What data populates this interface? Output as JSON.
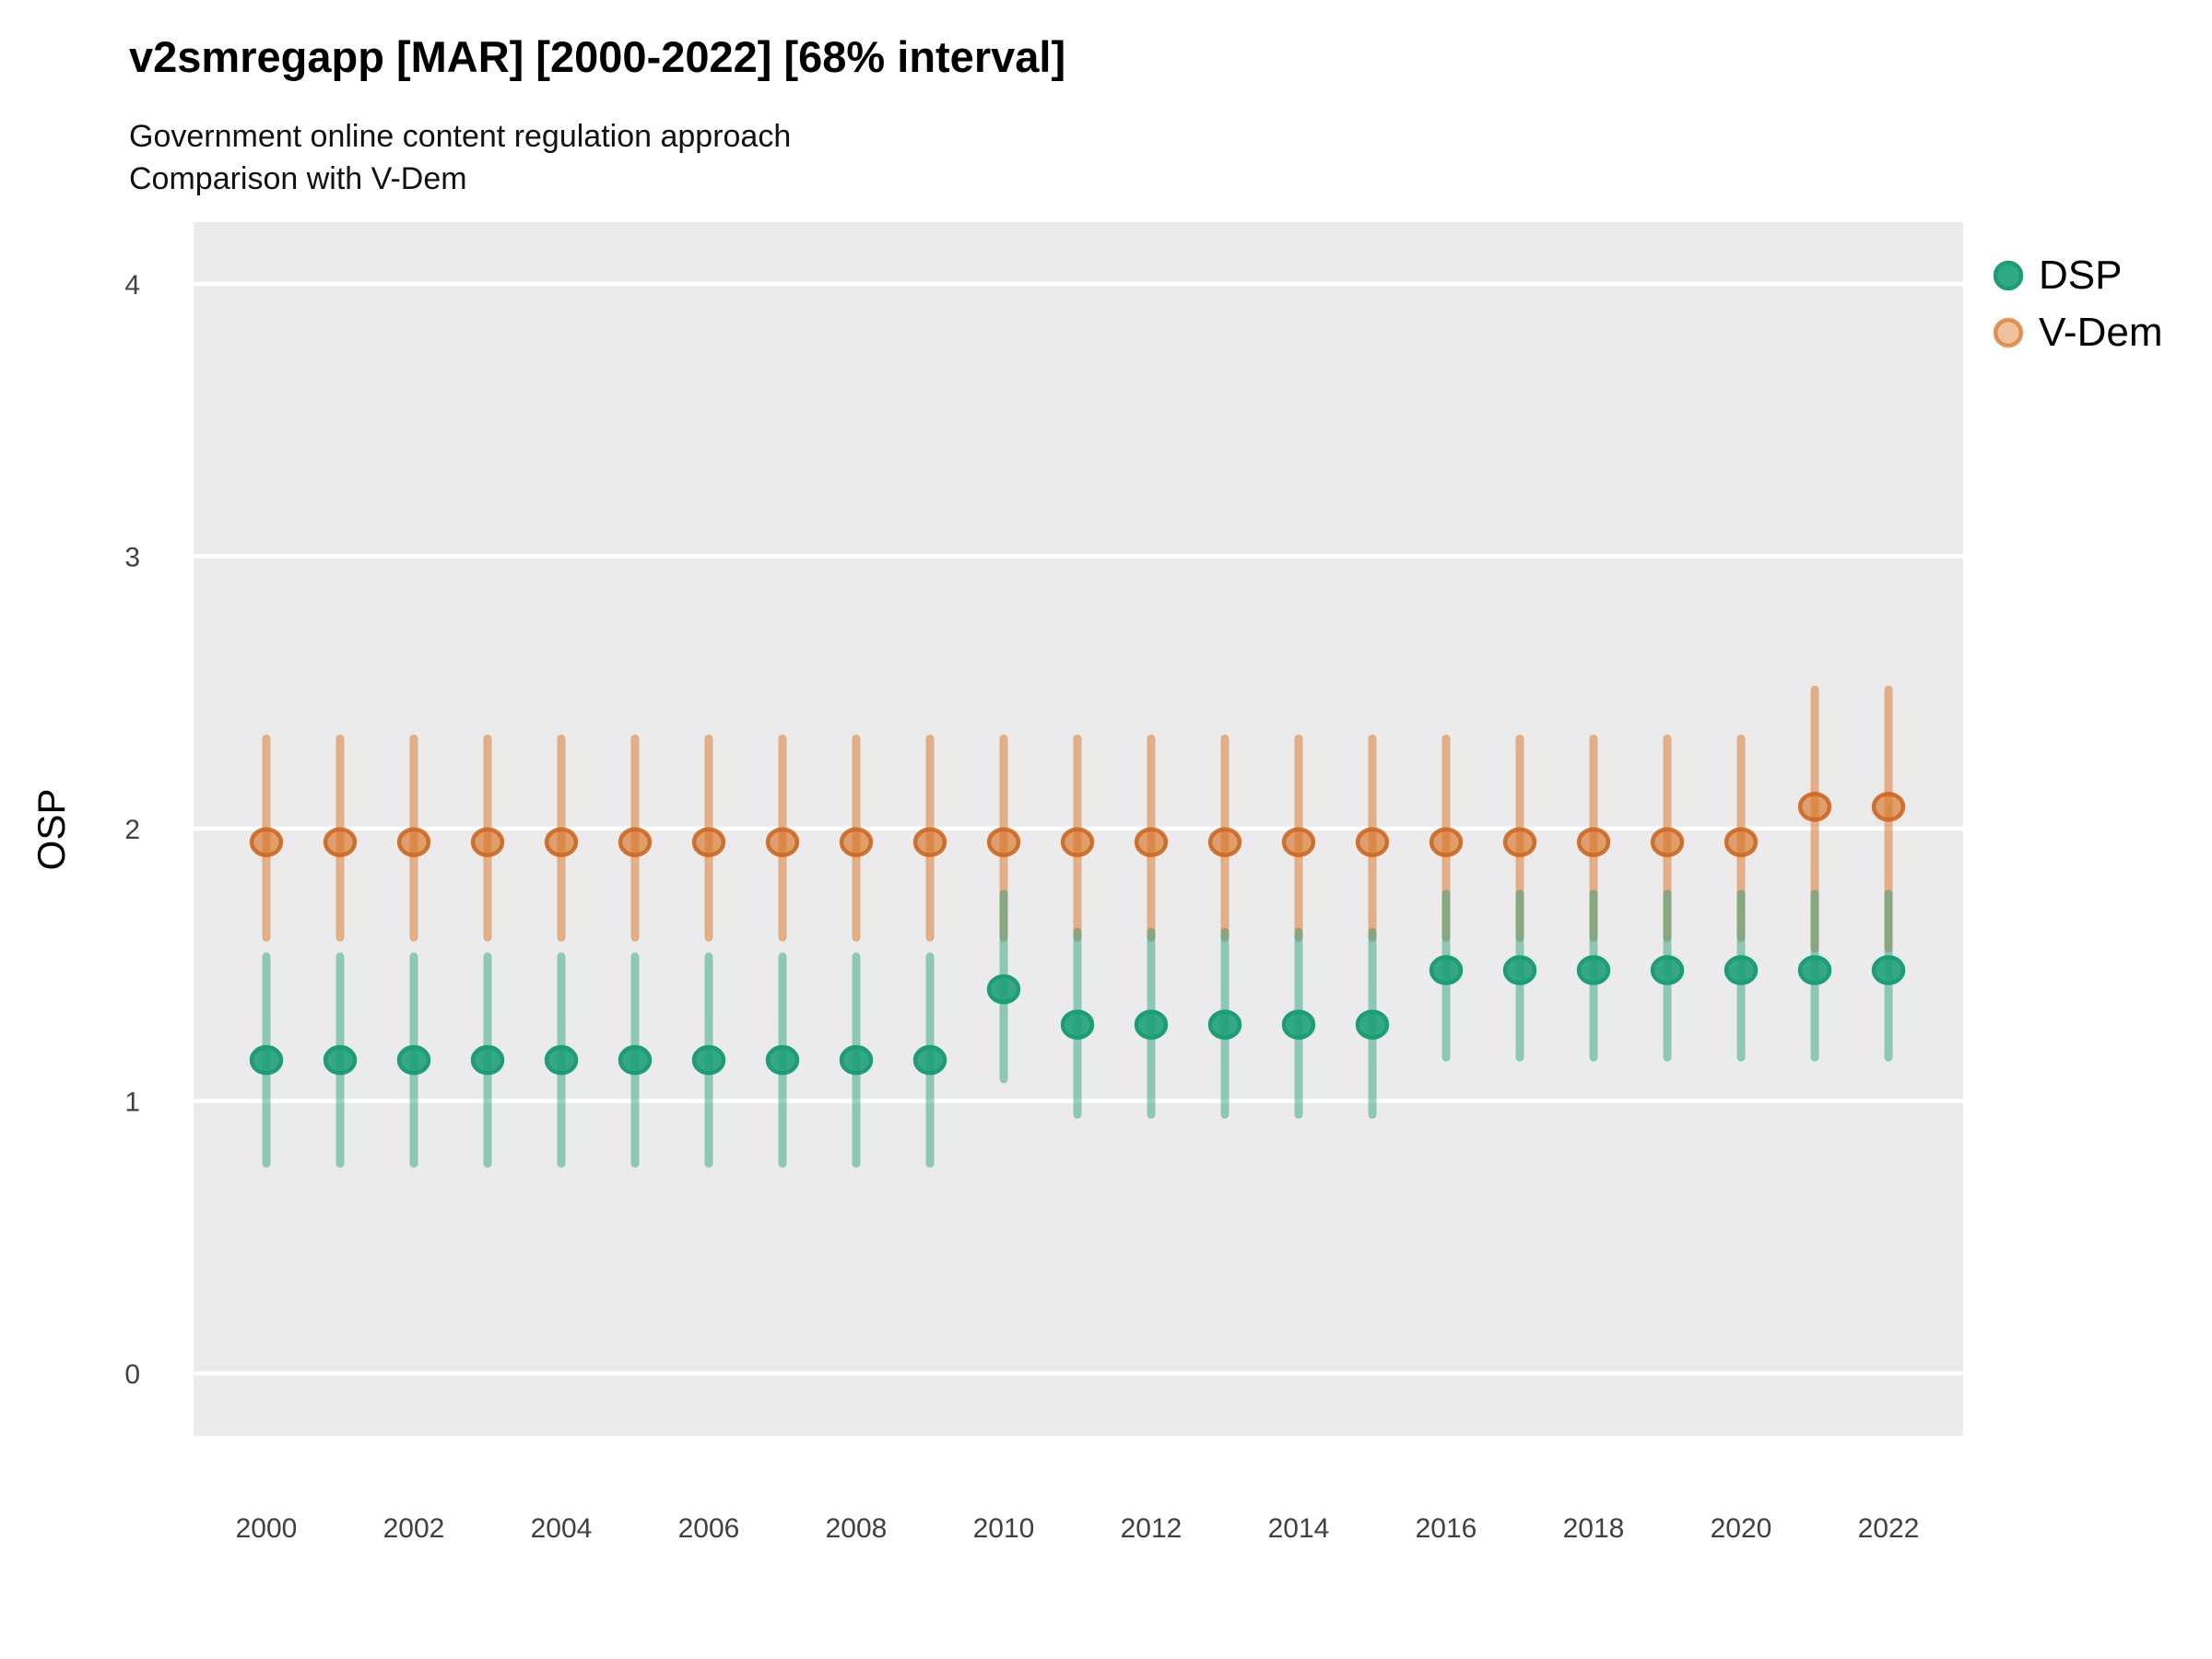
{
  "title": "v2smregapp [MAR] [2000-2022] [68% interval]",
  "subtitle_line1": "Government online content regulation approach",
  "subtitle_line2": "Comparison with V-Dem",
  "y_axis_title": "OSP",
  "colors": {
    "panel_background": "#EBEBEB",
    "gridline": "#FFFFFF",
    "tick_label": "#404040",
    "dsp_green": "#1B9E77",
    "vdem_orange": "#D9772A"
  },
  "legend": {
    "position": "right",
    "items": [
      {
        "label": "DSP",
        "color": "#1B9E77",
        "fill_alpha": 0.9,
        "ring_alpha": 1.0
      },
      {
        "label": "V-Dem",
        "color": "#D9772A",
        "fill_alpha": 0.45,
        "ring_alpha": 0.75
      }
    ]
  },
  "chart_data": {
    "type": "scatter",
    "title": "v2smregapp [MAR] [2000-2022] [68% interval]",
    "subtitle": [
      "Government online content regulation approach",
      "Comparison with V-Dem"
    ],
    "xlabel": "",
    "ylabel": "OSP",
    "interval": "68%",
    "ylim": [
      0,
      4
    ],
    "yticks": [
      "0",
      "1",
      "2",
      "3",
      "4"
    ],
    "ytick_values": [
      0,
      1,
      2,
      3,
      4
    ],
    "xticks": [
      "2000",
      "2002",
      "2004",
      "2006",
      "2008",
      "2010",
      "2012",
      "2014",
      "2016",
      "2018",
      "2020",
      "2022"
    ],
    "xtick_values": [
      2000,
      2002,
      2004,
      2006,
      2008,
      2010,
      2012,
      2014,
      2016,
      2018,
      2020,
      2022
    ],
    "grid": "major horizontal only, white on gray panel",
    "legend_position": "right",
    "x": [
      2000,
      2001,
      2002,
      2003,
      2004,
      2005,
      2006,
      2007,
      2008,
      2009,
      2010,
      2011,
      2012,
      2013,
      2014,
      2015,
      2016,
      2017,
      2018,
      2019,
      2020,
      2021,
      2022
    ],
    "series": [
      {
        "name": "V-Dem",
        "color": "#D9772A",
        "bar_alpha": 0.52,
        "point_fill_alpha": 0.65,
        "mean": [
          1.95,
          1.95,
          1.95,
          1.95,
          1.95,
          1.95,
          1.95,
          1.95,
          1.95,
          1.95,
          1.95,
          1.95,
          1.95,
          1.95,
          1.95,
          1.95,
          1.95,
          1.95,
          1.95,
          1.95,
          1.95,
          2.08,
          2.08
        ],
        "lo": [
          1.6,
          1.6,
          1.6,
          1.6,
          1.6,
          1.6,
          1.6,
          1.6,
          1.6,
          1.6,
          1.6,
          1.6,
          1.6,
          1.6,
          1.6,
          1.6,
          1.6,
          1.6,
          1.6,
          1.6,
          1.6,
          1.56,
          1.56
        ],
        "hi": [
          2.33,
          2.33,
          2.33,
          2.33,
          2.33,
          2.33,
          2.33,
          2.33,
          2.33,
          2.33,
          2.33,
          2.33,
          2.33,
          2.33,
          2.33,
          2.33,
          2.33,
          2.33,
          2.33,
          2.33,
          2.33,
          2.51,
          2.51
        ]
      },
      {
        "name": "DSP",
        "color": "#1B9E77",
        "bar_alpha": 0.45,
        "point_fill_alpha": 0.88,
        "mean": [
          1.15,
          1.15,
          1.15,
          1.15,
          1.15,
          1.15,
          1.15,
          1.15,
          1.15,
          1.15,
          1.41,
          1.28,
          1.28,
          1.28,
          1.28,
          1.28,
          1.48,
          1.48,
          1.48,
          1.48,
          1.48,
          1.48,
          1.48
        ],
        "lo": [
          0.77,
          0.77,
          0.77,
          0.77,
          0.77,
          0.77,
          0.77,
          0.77,
          0.77,
          0.77,
          1.08,
          0.95,
          0.95,
          0.95,
          0.95,
          0.95,
          1.16,
          1.16,
          1.16,
          1.16,
          1.16,
          1.16,
          1.16
        ],
        "hi": [
          1.53,
          1.53,
          1.53,
          1.53,
          1.53,
          1.53,
          1.53,
          1.53,
          1.53,
          1.53,
          1.76,
          1.62,
          1.62,
          1.62,
          1.62,
          1.62,
          1.76,
          1.76,
          1.76,
          1.76,
          1.76,
          1.76,
          1.76
        ]
      }
    ]
  }
}
